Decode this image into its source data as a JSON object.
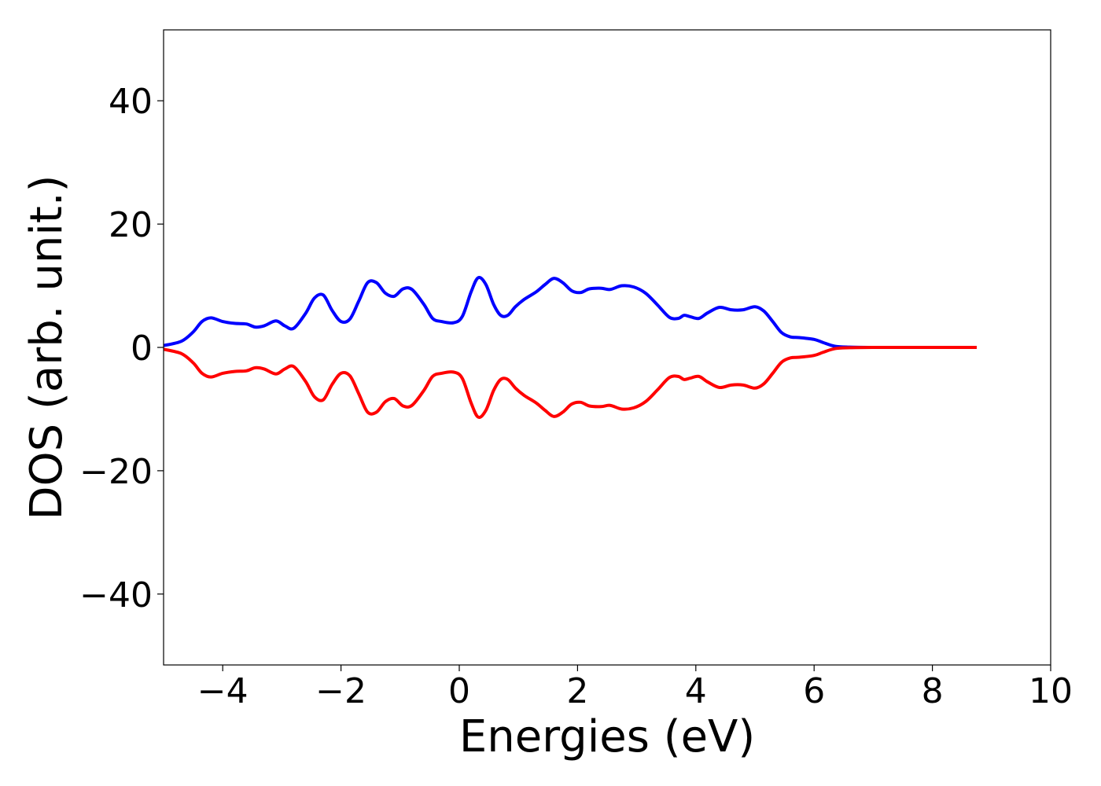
{
  "chart_data": {
    "type": "line",
    "title": "",
    "xlabel": "Energies (eV)",
    "ylabel": "DOS (arb. unit.)",
    "xlim": [
      -5,
      10
    ],
    "ylim": [
      -51.5,
      51.5
    ],
    "grid": false,
    "x_ticks": [
      -4,
      -2,
      0,
      2,
      4,
      6,
      8,
      10
    ],
    "x_tick_labels": [
      "−4",
      "−2",
      "0",
      "2",
      "4",
      "6",
      "8",
      "10"
    ],
    "y_ticks": [
      40,
      20,
      0,
      -20,
      -40
    ],
    "y_tick_labels": [
      "40",
      "20",
      "0",
      "−20",
      "−40"
    ],
    "series": [
      {
        "color": "#0000ff",
        "x": [
          -5.0,
          -4.7,
          -4.5,
          -4.35,
          -4.2,
          -4.0,
          -3.8,
          -3.6,
          -3.45,
          -3.3,
          -3.1,
          -2.95,
          -2.8,
          -2.6,
          -2.45,
          -2.3,
          -2.15,
          -2.0,
          -1.85,
          -1.7,
          -1.55,
          -1.4,
          -1.25,
          -1.1,
          -0.95,
          -0.8,
          -0.6,
          -0.45,
          -0.3,
          -0.1,
          0.05,
          0.2,
          0.32,
          0.45,
          0.58,
          0.7,
          0.82,
          0.95,
          1.1,
          1.3,
          1.45,
          1.6,
          1.75,
          1.9,
          2.05,
          2.2,
          2.4,
          2.55,
          2.75,
          2.95,
          3.15,
          3.35,
          3.55,
          3.7,
          3.8,
          3.9,
          4.05,
          4.2,
          4.4,
          4.6,
          4.8,
          5.0,
          5.15,
          5.3,
          5.45,
          5.6,
          5.75,
          6.0,
          6.15,
          6.35,
          6.6,
          7.0,
          7.5,
          8.0,
          8.75
        ],
        "y": [
          0.3,
          1.0,
          2.5,
          4.2,
          4.8,
          4.2,
          3.9,
          3.8,
          3.3,
          3.5,
          4.3,
          3.5,
          3.1,
          5.5,
          8.0,
          8.5,
          6.0,
          4.2,
          4.6,
          7.5,
          10.5,
          10.5,
          8.8,
          8.3,
          9.5,
          9.4,
          7.0,
          4.7,
          4.2,
          4.0,
          5.0,
          9.0,
          11.3,
          10.2,
          7.0,
          5.2,
          5.2,
          6.6,
          7.8,
          9.0,
          10.2,
          11.2,
          10.5,
          9.2,
          8.9,
          9.5,
          9.6,
          9.4,
          10.0,
          9.8,
          8.8,
          6.9,
          4.9,
          4.7,
          5.2,
          5.0,
          4.7,
          5.6,
          6.5,
          6.1,
          6.1,
          6.6,
          5.9,
          4.2,
          2.4,
          1.7,
          1.6,
          1.3,
          0.8,
          0.2,
          0.05,
          0.0,
          0.0,
          0.0,
          0.0
        ]
      },
      {
        "color": "#ff0000",
        "x": [
          -5.0,
          -4.7,
          -4.5,
          -4.35,
          -4.2,
          -4.0,
          -3.8,
          -3.6,
          -3.45,
          -3.3,
          -3.1,
          -2.95,
          -2.8,
          -2.6,
          -2.45,
          -2.3,
          -2.15,
          -2.0,
          -1.85,
          -1.7,
          -1.55,
          -1.4,
          -1.25,
          -1.1,
          -0.95,
          -0.8,
          -0.6,
          -0.45,
          -0.3,
          -0.1,
          0.05,
          0.2,
          0.32,
          0.45,
          0.58,
          0.7,
          0.82,
          0.95,
          1.1,
          1.3,
          1.45,
          1.6,
          1.75,
          1.9,
          2.05,
          2.2,
          2.4,
          2.55,
          2.75,
          2.95,
          3.15,
          3.35,
          3.55,
          3.7,
          3.8,
          3.9,
          4.05,
          4.2,
          4.4,
          4.6,
          4.8,
          5.0,
          5.15,
          5.3,
          5.45,
          5.6,
          5.75,
          6.0,
          6.15,
          6.35,
          6.6,
          7.0,
          7.5,
          8.0,
          8.75
        ],
        "y": [
          -0.3,
          -1.0,
          -2.5,
          -4.2,
          -4.8,
          -4.2,
          -3.9,
          -3.8,
          -3.3,
          -3.5,
          -4.3,
          -3.5,
          -3.1,
          -5.5,
          -8.0,
          -8.5,
          -6.0,
          -4.2,
          -4.6,
          -7.5,
          -10.5,
          -10.5,
          -8.8,
          -8.3,
          -9.5,
          -9.4,
          -7.0,
          -4.7,
          -4.2,
          -4.0,
          -5.0,
          -9.0,
          -11.3,
          -10.2,
          -7.0,
          -5.2,
          -5.2,
          -6.6,
          -7.8,
          -9.0,
          -10.2,
          -11.2,
          -10.5,
          -9.2,
          -8.9,
          -9.5,
          -9.6,
          -9.4,
          -10.0,
          -9.8,
          -8.8,
          -6.9,
          -4.9,
          -4.7,
          -5.2,
          -5.0,
          -4.7,
          -5.6,
          -6.5,
          -6.1,
          -6.1,
          -6.6,
          -5.9,
          -4.2,
          -2.4,
          -1.7,
          -1.6,
          -1.3,
          -0.8,
          -0.2,
          -0.05,
          0.0,
          0.0,
          0.0,
          0.0
        ]
      }
    ]
  }
}
